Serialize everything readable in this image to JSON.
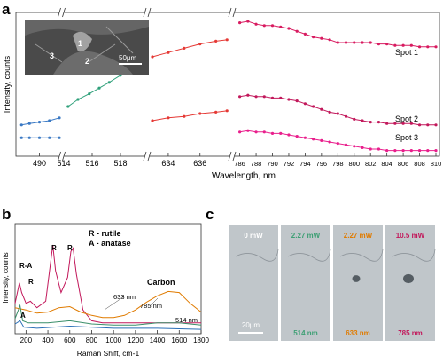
{
  "panel_labels": {
    "a": "a",
    "b": "b",
    "c": "c"
  },
  "chart_data": [
    {
      "type": "line",
      "panel": "a",
      "title": "",
      "xlabel": "Wavelength, nm",
      "ylabel": "Intensity, counts",
      "axis_breaks": true,
      "segments": [
        {
          "range": [
            488,
            492
          ],
          "ticks": [
            490
          ]
        },
        {
          "range": [
            514,
            519.5
          ],
          "ticks": [
            514,
            516,
            518
          ]
        },
        {
          "range": [
            633,
            637.8
          ],
          "ticks": [
            634,
            636
          ]
        },
        {
          "range": [
            785.5,
            810
          ],
          "ticks": [
            786,
            788,
            790,
            792,
            794,
            796,
            798,
            800,
            802,
            804,
            806,
            808,
            810
          ]
        }
      ],
      "ylim": [
        0,
        100
      ],
      "series": [
        {
          "name": "Spot 1",
          "color": "#d81b60",
          "points": [
            [
              488.2,
              22
            ],
            [
              489.0,
              23
            ],
            [
              490.0,
              24
            ],
            [
              491.0,
              25
            ],
            [
              492.0,
              27
            ],
            [
              514.3,
              35
            ],
            [
              515.0,
              40
            ],
            [
              515.8,
              44
            ],
            [
              516.5,
              48
            ],
            [
              517.2,
              52
            ],
            [
              518.0,
              57
            ],
            [
              518.8,
              61
            ],
            [
              519.3,
              63
            ],
            [
              633.0,
              70
            ],
            [
              634.0,
              73
            ],
            [
              635.0,
              76
            ],
            [
              636.0,
              79
            ],
            [
              637.0,
              81
            ],
            [
              637.7,
              82
            ],
            [
              786,
              94
            ],
            [
              787,
              95
            ],
            [
              788,
              93
            ],
            [
              789,
              92
            ],
            [
              790,
              92
            ],
            [
              791,
              91
            ],
            [
              792,
              90
            ],
            [
              793,
              88
            ],
            [
              794,
              86
            ],
            [
              795,
              84
            ],
            [
              796,
              83
            ],
            [
              797,
              82
            ],
            [
              798,
              80
            ],
            [
              799,
              80
            ],
            [
              800,
              80
            ],
            [
              801,
              80
            ],
            [
              802,
              80
            ],
            [
              803,
              79
            ],
            [
              804,
              79
            ],
            [
              805,
              78
            ],
            [
              806,
              78
            ],
            [
              807,
              78
            ],
            [
              808,
              77
            ],
            [
              809,
              77
            ],
            [
              810,
              77
            ]
          ]
        },
        {
          "name": "Spot 2",
          "color": "#c2185b",
          "points": [
            [
              488.2,
              13
            ],
            [
              489.0,
              13
            ],
            [
              490.0,
              13
            ],
            [
              491.0,
              13
            ],
            [
              492.0,
              13
            ],
            [
              633.0,
              25
            ],
            [
              634.0,
              27
            ],
            [
              635.0,
              28
            ],
            [
              636.0,
              30
            ],
            [
              637.0,
              31
            ],
            [
              637.7,
              32
            ],
            [
              786,
              42
            ],
            [
              787,
              43
            ],
            [
              788,
              42
            ],
            [
              789,
              42
            ],
            [
              790,
              41
            ],
            [
              791,
              41
            ],
            [
              792,
              40
            ],
            [
              793,
              39
            ],
            [
              794,
              37
            ],
            [
              795,
              35
            ],
            [
              796,
              33
            ],
            [
              797,
              31
            ],
            [
              798,
              30
            ],
            [
              799,
              28
            ],
            [
              800,
              26
            ],
            [
              801,
              25
            ],
            [
              802,
              24
            ],
            [
              803,
              24
            ],
            [
              804,
              23
            ],
            [
              805,
              23
            ],
            [
              806,
              23
            ],
            [
              807,
              23
            ],
            [
              808,
              22
            ],
            [
              809,
              22
            ],
            [
              810,
              22
            ]
          ]
        },
        {
          "name": "Spot 3",
          "color": "#e91e8c",
          "points": [
            [
              786,
              17
            ],
            [
              787,
              18
            ],
            [
              788,
              17
            ],
            [
              789,
              17
            ],
            [
              790,
              16
            ],
            [
              791,
              16
            ],
            [
              792,
              15
            ],
            [
              793,
              14
            ],
            [
              794,
              13
            ],
            [
              795,
              12
            ],
            [
              796,
              11
            ],
            [
              797,
              10
            ],
            [
              798,
              9
            ],
            [
              799,
              8
            ],
            [
              800,
              7
            ],
            [
              801,
              6
            ],
            [
              802,
              5
            ],
            [
              803,
              5
            ],
            [
              804,
              4
            ],
            [
              805,
              4
            ],
            [
              806,
              4
            ],
            [
              807,
              4
            ],
            [
              808,
              4
            ],
            [
              809,
              4
            ],
            [
              810,
              4
            ]
          ]
        }
      ],
      "inset": {
        "labels": [
          "1",
          "2",
          "3"
        ],
        "scale_bar": "50μm"
      },
      "series_labels": [
        "Spot 1",
        "Spot 2",
        "Spot 3"
      ]
    },
    {
      "type": "line",
      "panel": "b",
      "title": "",
      "xlabel": "Raman Shift, cm-1",
      "ylabel": "Intensity, counts",
      "xlim": [
        100,
        1800
      ],
      "xticks": [
        200,
        400,
        600,
        800,
        1000,
        1200,
        1400,
        1600,
        1800
      ],
      "ylim": [
        0,
        100
      ],
      "legend_text": [
        "R - rutile",
        "A - anatase"
      ],
      "peak_labels": [
        "R-A",
        "R",
        "R",
        "R",
        "A",
        "Carbon"
      ],
      "series": [
        {
          "name": "633 nm",
          "color": "#c2185b",
          "points": [
            [
              100,
              28
            ],
            [
              140,
              47
            ],
            [
              160,
              38
            ],
            [
              200,
              28
            ],
            [
              240,
              30
            ],
            [
              300,
              24
            ],
            [
              380,
              30
            ],
            [
              420,
              62
            ],
            [
              445,
              82
            ],
            [
              470,
              58
            ],
            [
              520,
              38
            ],
            [
              580,
              52
            ],
            [
              610,
              76
            ],
            [
              630,
              79
            ],
            [
              660,
              55
            ],
            [
              720,
              22
            ],
            [
              800,
              12
            ],
            [
              900,
              10
            ],
            [
              1000,
              10
            ],
            [
              1200,
              10
            ],
            [
              1400,
              10
            ],
            [
              1600,
              10
            ],
            [
              1800,
              10
            ]
          ]
        },
        {
          "name": "785 nm",
          "color": "#e07b00",
          "points": [
            [
              100,
              24
            ],
            [
              200,
              22
            ],
            [
              300,
              19
            ],
            [
              400,
              20
            ],
            [
              500,
              24
            ],
            [
              600,
              25
            ],
            [
              700,
              20
            ],
            [
              800,
              17
            ],
            [
              900,
              15
            ],
            [
              1000,
              15
            ],
            [
              1100,
              17
            ],
            [
              1200,
              22
            ],
            [
              1300,
              29
            ],
            [
              1400,
              35
            ],
            [
              1500,
              39
            ],
            [
              1600,
              38
            ],
            [
              1700,
              28
            ],
            [
              1800,
              20
            ]
          ]
        },
        {
          "name": "514 nm",
          "color": "#3a8f6a",
          "points": [
            [
              100,
              14
            ],
            [
              145,
              26
            ],
            [
              170,
              12
            ],
            [
              220,
              10
            ],
            [
              400,
              10
            ],
            [
              600,
              12
            ],
            [
              800,
              9
            ],
            [
              1000,
              8
            ],
            [
              1200,
              8
            ],
            [
              1400,
              10
            ],
            [
              1600,
              10
            ],
            [
              1800,
              8
            ]
          ]
        },
        {
          "name": "",
          "color": "#2b6fb7",
          "points": [
            [
              100,
              9
            ],
            [
              145,
              12
            ],
            [
              180,
              6
            ],
            [
              300,
              5
            ],
            [
              600,
              7
            ],
            [
              1000,
              5
            ],
            [
              1400,
              5
            ],
            [
              1800,
              4
            ]
          ]
        }
      ]
    }
  ],
  "panel_c": {
    "frames": [
      {
        "power": "0 mW",
        "wavelength": "",
        "power_color": "#ffffff",
        "wl_color": "#ffffff"
      },
      {
        "power": "2.27 mW",
        "wavelength": "514 nm",
        "power_color": "#3d9f74",
        "wl_color": "#3d9f74"
      },
      {
        "power": "2.27 mW",
        "wavelength": "633 nm",
        "power_color": "#e07b00",
        "wl_color": "#e07b00"
      },
      {
        "power": "10.5 mW",
        "wavelength": "785 nm",
        "power_color": "#c2185b",
        "wl_color": "#c2185b"
      }
    ],
    "scale_bar": "20μm"
  }
}
